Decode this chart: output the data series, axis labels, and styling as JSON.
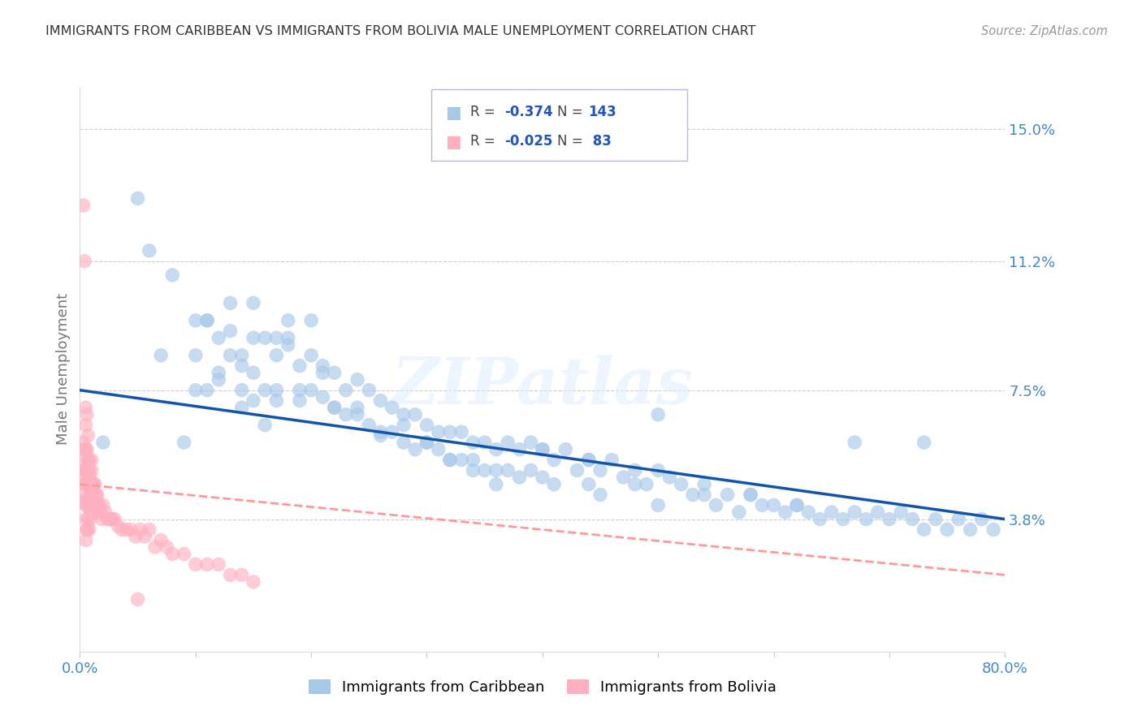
{
  "title": "IMMIGRANTS FROM CARIBBEAN VS IMMIGRANTS FROM BOLIVIA MALE UNEMPLOYMENT CORRELATION CHART",
  "source": "Source: ZipAtlas.com",
  "ylabel": "Male Unemployment",
  "x_min": 0.0,
  "x_max": 0.8,
  "y_min": 0.0,
  "y_max": 0.162,
  "y_ticks": [
    0.038,
    0.075,
    0.112,
    0.15
  ],
  "y_tick_labels": [
    "3.8%",
    "7.5%",
    "11.2%",
    "15.0%"
  ],
  "x_ticks": [
    0.0,
    0.1,
    0.2,
    0.3,
    0.4,
    0.5,
    0.6,
    0.7,
    0.8
  ],
  "x_tick_labels": [
    "0.0%",
    "",
    "",
    "",
    "",
    "",
    "",
    "",
    "80.0%"
  ],
  "caribbean_color": "#A8C8E8",
  "bolivia_color": "#FFB0C0",
  "caribbean_line_color": "#1155AA",
  "bolivia_line_color": "#FF9999",
  "background_color": "#FFFFFF",
  "grid_color": "#CCCCCC",
  "watermark": "ZIPatlas",
  "caribbean_x": [
    0.02,
    0.05,
    0.07,
    0.09,
    0.1,
    0.11,
    0.11,
    0.12,
    0.12,
    0.13,
    0.13,
    0.14,
    0.14,
    0.15,
    0.15,
    0.15,
    0.16,
    0.16,
    0.17,
    0.17,
    0.17,
    0.18,
    0.18,
    0.19,
    0.19,
    0.2,
    0.2,
    0.21,
    0.21,
    0.22,
    0.22,
    0.23,
    0.23,
    0.24,
    0.24,
    0.25,
    0.25,
    0.26,
    0.26,
    0.27,
    0.27,
    0.28,
    0.28,
    0.29,
    0.29,
    0.3,
    0.3,
    0.31,
    0.31,
    0.32,
    0.32,
    0.33,
    0.33,
    0.34,
    0.34,
    0.35,
    0.35,
    0.36,
    0.36,
    0.37,
    0.37,
    0.38,
    0.38,
    0.39,
    0.39,
    0.4,
    0.4,
    0.41,
    0.41,
    0.42,
    0.43,
    0.44,
    0.44,
    0.45,
    0.45,
    0.46,
    0.47,
    0.48,
    0.49,
    0.5,
    0.5,
    0.51,
    0.52,
    0.53,
    0.54,
    0.55,
    0.56,
    0.57,
    0.58,
    0.59,
    0.6,
    0.61,
    0.62,
    0.63,
    0.64,
    0.65,
    0.66,
    0.67,
    0.68,
    0.69,
    0.7,
    0.71,
    0.72,
    0.73,
    0.74,
    0.75,
    0.76,
    0.77,
    0.78,
    0.79,
    0.06,
    0.08,
    0.1,
    0.1,
    0.11,
    0.12,
    0.13,
    0.14,
    0.14,
    0.15,
    0.16,
    0.17,
    0.18,
    0.19,
    0.2,
    0.21,
    0.22,
    0.24,
    0.26,
    0.28,
    0.3,
    0.32,
    0.34,
    0.36,
    0.4,
    0.44,
    0.48,
    0.5,
    0.54,
    0.58,
    0.62,
    0.67,
    0.73
  ],
  "caribbean_y": [
    0.06,
    0.13,
    0.085,
    0.06,
    0.095,
    0.095,
    0.075,
    0.09,
    0.08,
    0.1,
    0.085,
    0.085,
    0.075,
    0.1,
    0.09,
    0.08,
    0.09,
    0.075,
    0.09,
    0.085,
    0.075,
    0.09,
    0.095,
    0.082,
    0.072,
    0.085,
    0.075,
    0.082,
    0.073,
    0.08,
    0.07,
    0.075,
    0.068,
    0.078,
    0.068,
    0.075,
    0.065,
    0.072,
    0.063,
    0.07,
    0.063,
    0.068,
    0.06,
    0.068,
    0.058,
    0.065,
    0.06,
    0.063,
    0.058,
    0.063,
    0.055,
    0.063,
    0.055,
    0.06,
    0.055,
    0.06,
    0.052,
    0.058,
    0.052,
    0.06,
    0.052,
    0.058,
    0.05,
    0.06,
    0.052,
    0.058,
    0.05,
    0.055,
    0.048,
    0.058,
    0.052,
    0.055,
    0.048,
    0.052,
    0.045,
    0.055,
    0.05,
    0.048,
    0.048,
    0.052,
    0.042,
    0.05,
    0.048,
    0.045,
    0.048,
    0.042,
    0.045,
    0.04,
    0.045,
    0.042,
    0.042,
    0.04,
    0.042,
    0.04,
    0.038,
    0.04,
    0.038,
    0.04,
    0.038,
    0.04,
    0.038,
    0.04,
    0.038,
    0.035,
    0.038,
    0.035,
    0.038,
    0.035,
    0.038,
    0.035,
    0.115,
    0.108,
    0.085,
    0.075,
    0.095,
    0.078,
    0.092,
    0.07,
    0.082,
    0.072,
    0.065,
    0.072,
    0.088,
    0.075,
    0.095,
    0.08,
    0.07,
    0.07,
    0.062,
    0.065,
    0.06,
    0.055,
    0.052,
    0.048,
    0.058,
    0.055,
    0.052,
    0.068,
    0.045,
    0.045,
    0.042,
    0.06,
    0.06
  ],
  "bolivia_x": [
    0.003,
    0.003,
    0.003,
    0.004,
    0.004,
    0.004,
    0.004,
    0.005,
    0.005,
    0.005,
    0.005,
    0.005,
    0.005,
    0.005,
    0.006,
    0.006,
    0.006,
    0.006,
    0.006,
    0.007,
    0.007,
    0.007,
    0.007,
    0.008,
    0.008,
    0.008,
    0.008,
    0.009,
    0.009,
    0.009,
    0.01,
    0.01,
    0.01,
    0.011,
    0.011,
    0.012,
    0.012,
    0.013,
    0.013,
    0.014,
    0.015,
    0.016,
    0.017,
    0.018,
    0.019,
    0.02,
    0.022,
    0.024,
    0.026,
    0.028,
    0.03,
    0.033,
    0.036,
    0.04,
    0.044,
    0.048,
    0.052,
    0.056,
    0.06,
    0.065,
    0.07,
    0.075,
    0.08,
    0.09,
    0.1,
    0.11,
    0.12,
    0.13,
    0.14,
    0.15,
    0.003,
    0.004,
    0.005,
    0.005,
    0.006,
    0.006,
    0.007,
    0.008,
    0.009,
    0.01,
    0.012,
    0.014,
    0.05
  ],
  "bolivia_y": [
    0.06,
    0.055,
    0.05,
    0.058,
    0.052,
    0.048,
    0.043,
    0.065,
    0.058,
    0.052,
    0.048,
    0.042,
    0.038,
    0.032,
    0.058,
    0.052,
    0.048,
    0.042,
    0.035,
    0.055,
    0.05,
    0.044,
    0.038,
    0.052,
    0.048,
    0.042,
    0.035,
    0.05,
    0.044,
    0.038,
    0.052,
    0.046,
    0.04,
    0.048,
    0.042,
    0.048,
    0.042,
    0.048,
    0.042,
    0.045,
    0.045,
    0.042,
    0.042,
    0.04,
    0.038,
    0.042,
    0.04,
    0.038,
    0.038,
    0.038,
    0.038,
    0.036,
    0.035,
    0.035,
    0.035,
    0.033,
    0.035,
    0.033,
    0.035,
    0.03,
    0.032,
    0.03,
    0.028,
    0.028,
    0.025,
    0.025,
    0.025,
    0.022,
    0.022,
    0.02,
    0.128,
    0.112,
    0.07,
    0.045,
    0.068,
    0.035,
    0.062,
    0.055,
    0.048,
    0.055,
    0.045,
    0.04,
    0.015
  ],
  "caribbean_line_x": [
    0.0,
    0.8
  ],
  "caribbean_line_y": [
    0.075,
    0.038
  ],
  "bolivia_line_x": [
    0.0,
    0.8
  ],
  "bolivia_line_y": [
    0.048,
    0.022
  ]
}
